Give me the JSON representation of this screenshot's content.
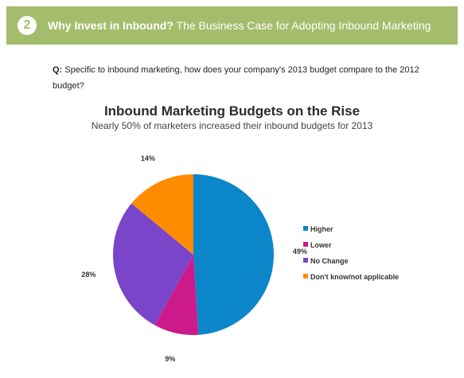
{
  "header": {
    "badge_number": "2",
    "title_bold": "Why Invest in Inbound?",
    "title_rest": " The Business Case for Adopting Inbound Marketing",
    "background_color": "#a3bd6c"
  },
  "question": {
    "label": "Q:",
    "text": " Specific to inbound marketing, how does your company's 2013 budget compare to the 2012 budget?"
  },
  "chart_data": {
    "type": "pie",
    "title": "Inbound Marketing Budgets on the Rise",
    "subtitle": "Nearly 50% of marketers increased their inbound budgets for 2013",
    "slices": [
      {
        "label": "Higher",
        "value": 49,
        "display": "49%",
        "color": "#0a86c9"
      },
      {
        "label": "Lower",
        "value": 9,
        "display": "9%",
        "color": "#cc1a8c"
      },
      {
        "label": "No Change",
        "value": 28,
        "display": "28%",
        "color": "#7a45c9"
      },
      {
        "label": "Don't know/not applicable",
        "value": 14,
        "display": "14%",
        "color": "#ff8c00"
      }
    ],
    "legend_position": "right"
  }
}
